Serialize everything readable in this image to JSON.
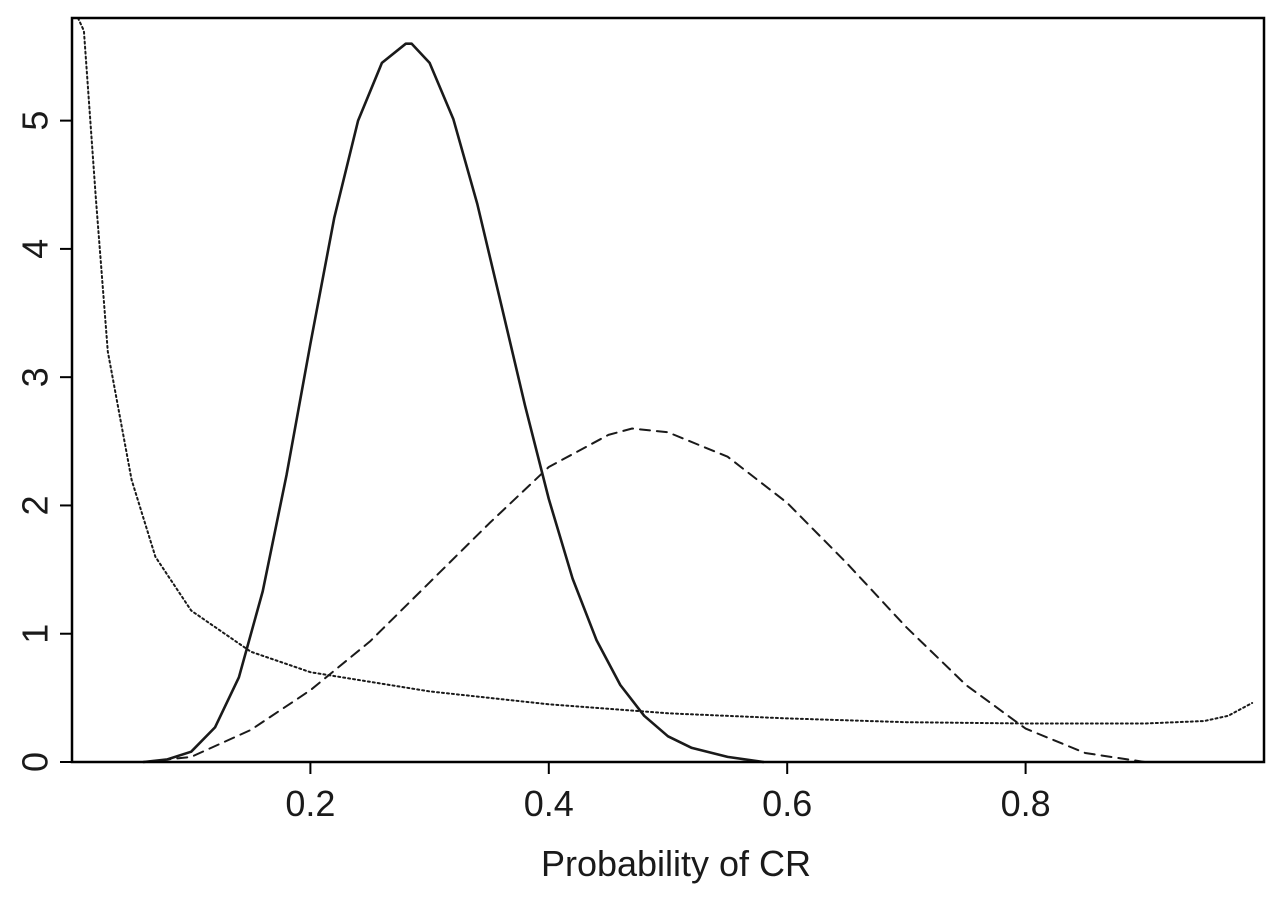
{
  "chart_data": {
    "type": "line",
    "xlabel": "Probability of CR",
    "ylabel": "",
    "xlim": [
      0.0,
      1.0
    ],
    "ylim": [
      0,
      5.8
    ],
    "x_ticks": [
      0.2,
      0.4,
      0.6,
      0.8
    ],
    "y_ticks": [
      0,
      1,
      2,
      3,
      4,
      5
    ],
    "x_tick_labels": [
      "0.2",
      "0.4",
      "0.6",
      "0.8"
    ],
    "y_tick_labels": [
      "0",
      "1",
      "2",
      "3",
      "4",
      "5"
    ],
    "grid": false,
    "colors": {
      "series": "#1a1a1a",
      "frame": "#000000"
    },
    "series": [
      {
        "style": "solid",
        "x": [
          0.06,
          0.08,
          0.1,
          0.12,
          0.14,
          0.16,
          0.18,
          0.2,
          0.22,
          0.24,
          0.26,
          0.28,
          0.285,
          0.3,
          0.32,
          0.34,
          0.36,
          0.38,
          0.4,
          0.42,
          0.44,
          0.46,
          0.48,
          0.5,
          0.52,
          0.55,
          0.58
        ],
        "y": [
          0.0,
          0.02,
          0.08,
          0.27,
          0.66,
          1.33,
          2.24,
          3.26,
          4.24,
          5.0,
          5.45,
          5.6,
          5.6,
          5.45,
          5.01,
          4.35,
          3.57,
          2.78,
          2.05,
          1.43,
          0.95,
          0.6,
          0.36,
          0.2,
          0.11,
          0.04,
          0.0
        ]
      },
      {
        "style": "dashed",
        "x": [
          0.06,
          0.1,
          0.15,
          0.2,
          0.25,
          0.3,
          0.35,
          0.4,
          0.45,
          0.47,
          0.5,
          0.55,
          0.6,
          0.65,
          0.7,
          0.75,
          0.8,
          0.85,
          0.9
        ],
        "y": [
          0.0,
          0.04,
          0.25,
          0.56,
          0.94,
          1.4,
          1.86,
          2.3,
          2.55,
          2.6,
          2.57,
          2.38,
          2.02,
          1.55,
          1.05,
          0.6,
          0.26,
          0.07,
          0.0
        ]
      },
      {
        "style": "dotted",
        "x": [
          0.005,
          0.01,
          0.02,
          0.03,
          0.05,
          0.07,
          0.1,
          0.15,
          0.2,
          0.3,
          0.4,
          0.5,
          0.6,
          0.7,
          0.8,
          0.9,
          0.95,
          0.97,
          0.99
        ],
        "y": [
          5.8,
          5.7,
          4.4,
          3.2,
          2.2,
          1.6,
          1.18,
          0.86,
          0.7,
          0.55,
          0.45,
          0.38,
          0.34,
          0.31,
          0.3,
          0.3,
          0.32,
          0.36,
          0.46
        ]
      }
    ]
  }
}
